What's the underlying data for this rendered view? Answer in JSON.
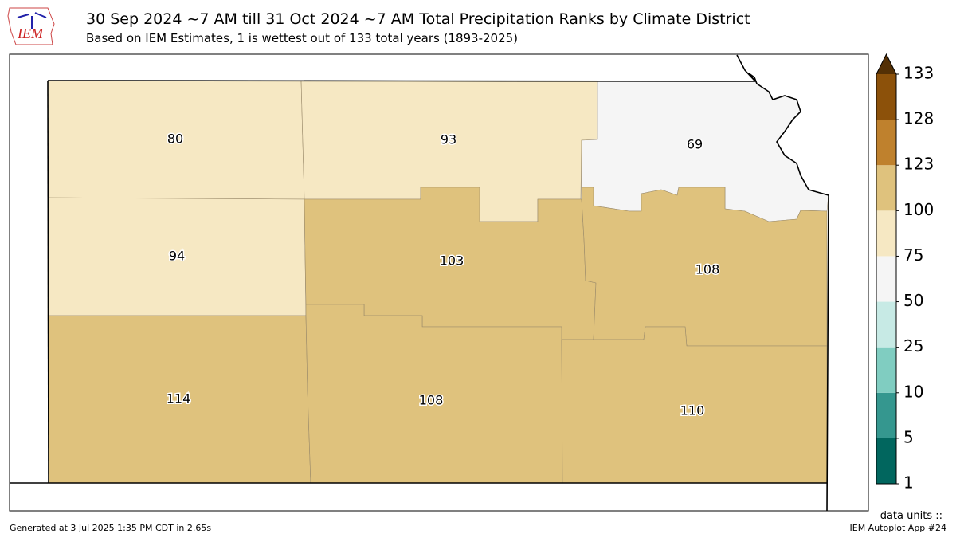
{
  "header": {
    "logo": "IEM",
    "title": "30 Sep 2024 ~7 AM till 31 Oct 2024 ~7 AM Total Precipitation Ranks by Climate District",
    "subtitle": "Based on IEM Estimates, 1 is wettest out of 133 total years (1893-2025)"
  },
  "districts": [
    {
      "rank": 80
    },
    {
      "rank": 93
    },
    {
      "rank": 69
    },
    {
      "rank": 94
    },
    {
      "rank": 103
    },
    {
      "rank": 108
    },
    {
      "rank": 114
    },
    {
      "rank": 108
    },
    {
      "rank": 110
    }
  ],
  "colorbar": {
    "ticks": [
      1,
      5,
      10,
      25,
      50,
      75,
      100,
      123,
      128,
      133
    ],
    "colors": [
      "#01665e",
      "#35978f",
      "#80cdc1",
      "#c7eae5",
      "#f5f5f5",
      "#f6e8c3",
      "#dfc27d",
      "#bf812d",
      "#8c510a"
    ],
    "extend_color": "#543005",
    "units": "data units ::"
  },
  "footer": {
    "generated": "Generated at 3 Jul 2025 1:35 PM CDT in 2.65s",
    "app": "IEM Autoplot App #24"
  }
}
